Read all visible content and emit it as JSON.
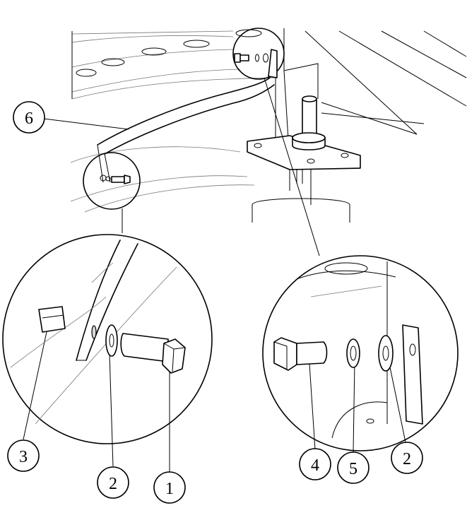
{
  "callouts": [
    {
      "id": "c6",
      "label": "6"
    },
    {
      "id": "c3",
      "label": "3"
    },
    {
      "id": "c2a",
      "label": "2"
    },
    {
      "id": "c1",
      "label": "1"
    },
    {
      "id": "c4",
      "label": "4"
    },
    {
      "id": "c5",
      "label": "5"
    },
    {
      "id": "c2b",
      "label": "2"
    }
  ]
}
